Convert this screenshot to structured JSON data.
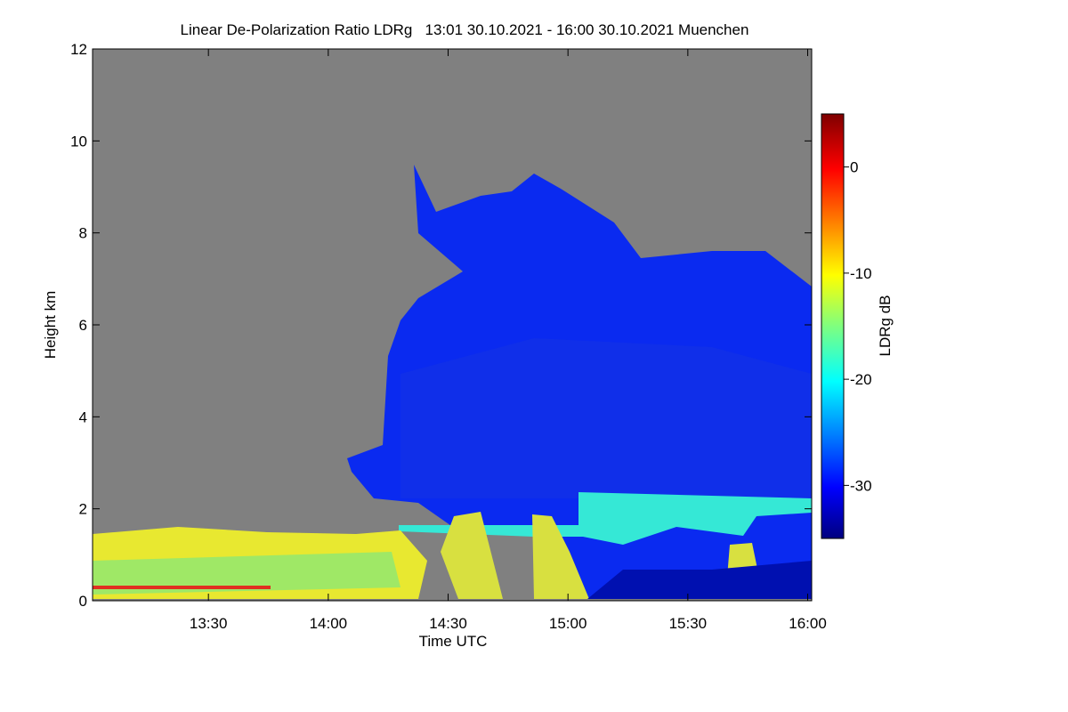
{
  "chart_data": {
    "type": "heatmap",
    "title": "Linear De-Polarization Ratio LDRg   13:01 30.10.2021 - 16:00 30.10.2021 Muenchen",
    "x_label": "Time UTC",
    "y_label": "Height km",
    "xlim": [
      781,
      961
    ],
    "xticks": [
      {
        "value": 810,
        "label": "13:30"
      },
      {
        "value": 840,
        "label": "14:00"
      },
      {
        "value": 870,
        "label": "14:30"
      },
      {
        "value": 900,
        "label": "15:00"
      },
      {
        "value": 930,
        "label": "15:30"
      },
      {
        "value": 960,
        "label": "16:00"
      }
    ],
    "ylim": [
      0,
      12
    ],
    "yticks": [
      0,
      2,
      4,
      6,
      8,
      10,
      12
    ],
    "background_color": "#808080",
    "colorbar": {
      "label": "LDRg dB",
      "colormap": "jet",
      "lim": [
        -35,
        5
      ],
      "ticks": [
        0,
        -10,
        -20,
        -30
      ]
    }
  }
}
